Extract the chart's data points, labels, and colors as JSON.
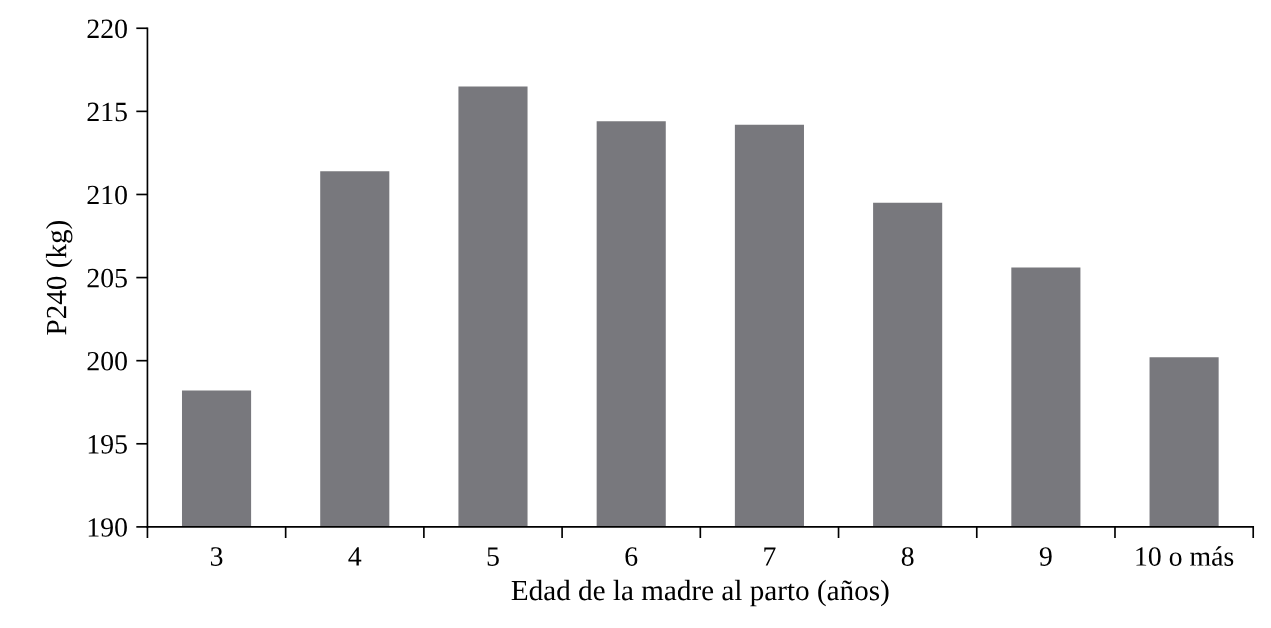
{
  "chart_data": {
    "type": "bar",
    "xlabel": "Edad de la madre al parto (años)",
    "ylabel": "P240 (kg)",
    "categories": [
      "3",
      "4",
      "5",
      "6",
      "7",
      "8",
      "9",
      "10 o más"
    ],
    "values": [
      198.2,
      211.4,
      216.5,
      214.4,
      214.2,
      209.5,
      205.6,
      200.2
    ],
    "color": "#78787d",
    "ylim": [
      190,
      220
    ],
    "yticks": [
      190,
      195,
      200,
      205,
      210,
      215,
      220
    ],
    "grid": false,
    "legend": false
  }
}
